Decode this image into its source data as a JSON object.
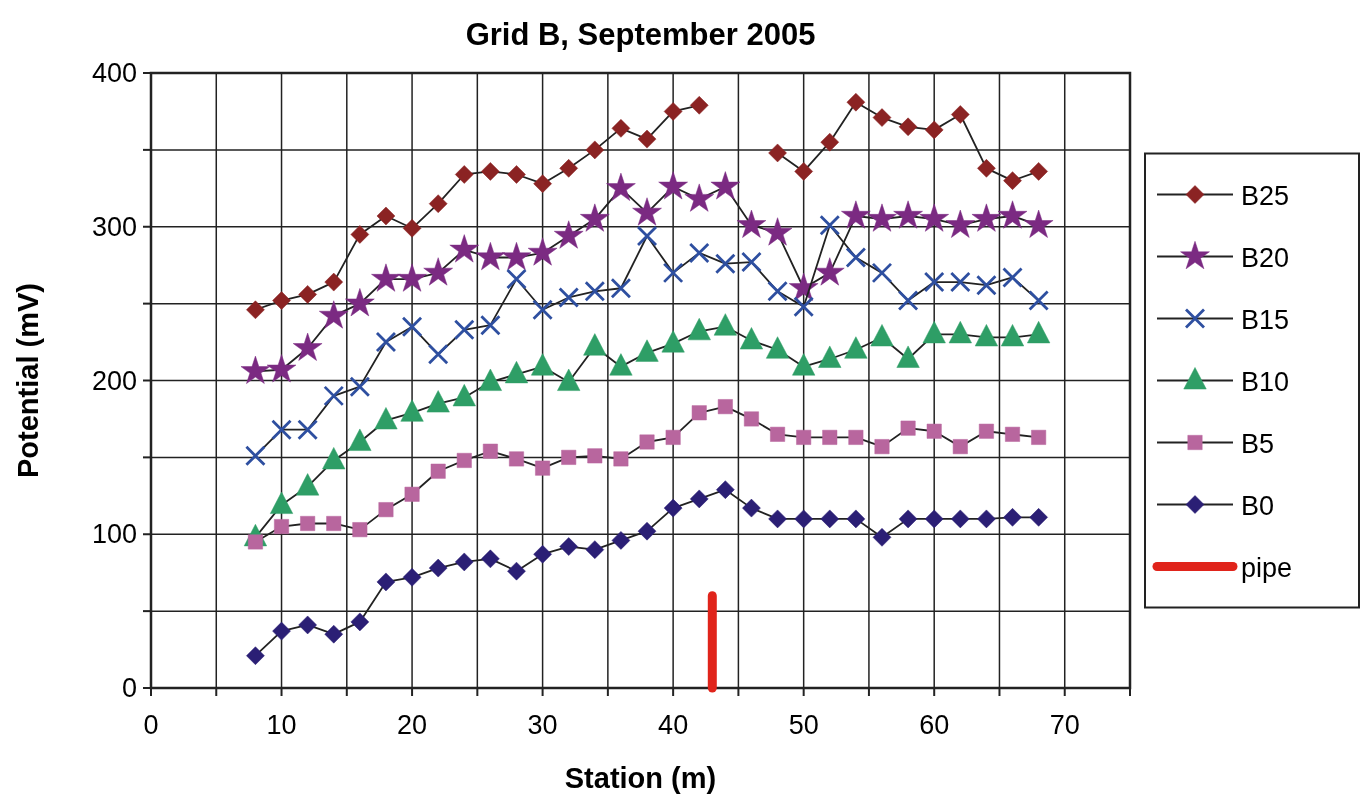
{
  "chart_data": {
    "type": "line",
    "title": "Grid B, September 2005",
    "xlabel": "Station (m)",
    "ylabel": "Potential (mV)",
    "x": [
      8,
      10,
      12,
      14,
      16,
      18,
      20,
      22,
      24,
      26,
      28,
      30,
      32,
      34,
      36,
      38,
      40,
      42,
      44,
      46,
      48,
      50,
      52,
      54,
      56,
      58,
      60,
      62,
      64,
      66,
      68
    ],
    "xlim": [
      0,
      75
    ],
    "xticks": [
      0,
      {
        "value": 5,
        "label": null
      },
      10,
      {
        "value": 15,
        "label": null
      },
      20,
      {
        "value": 25,
        "label": null
      },
      30,
      {
        "value": 35,
        "label": null
      },
      40,
      {
        "value": 45,
        "label": null
      },
      50,
      {
        "value": 55,
        "label": null
      },
      60,
      {
        "value": 65,
        "label": null
      },
      70,
      {
        "value": 75,
        "label": null
      }
    ],
    "ylim": [
      0,
      400
    ],
    "yticks": [
      0,
      {
        "value": 50,
        "label": null
      },
      100,
      {
        "value": 150,
        "label": null
      },
      200,
      {
        "value": 250,
        "label": null
      },
      300,
      {
        "value": 350,
        "label": null
      },
      400
    ],
    "grid": true,
    "legend": "right",
    "line_style": "solid",
    "series": [
      {
        "name": "B25",
        "color": "#8b2323",
        "marker": "diamond",
        "values": [
          246,
          252,
          256,
          264,
          295,
          307,
          299,
          315,
          334,
          336,
          334,
          328,
          338,
          350,
          364,
          357,
          375,
          379,
          null,
          null,
          348,
          336,
          355,
          381,
          371,
          365,
          363,
          373,
          338,
          330,
          336
        ]
      },
      {
        "name": "B20",
        "color": "#7b2a82",
        "marker": "star",
        "values": [
          206,
          207,
          221,
          242,
          250,
          266,
          266,
          270,
          285,
          280,
          280,
          283,
          294,
          305,
          325,
          309,
          326,
          318,
          326,
          301,
          296,
          260,
          270,
          307,
          305,
          307,
          305,
          301,
          305,
          307,
          301
        ]
      },
      {
        "name": "B15",
        "color": "#2e4fa0",
        "marker": "cross",
        "values": [
          151,
          168,
          168,
          190,
          196,
          225,
          235,
          217,
          233,
          236,
          266,
          246,
          254,
          258,
          260,
          294,
          270,
          283,
          276,
          277,
          258,
          248,
          301,
          280,
          270,
          252,
          264,
          264,
          262,
          267,
          252
        ]
      },
      {
        "name": "B10",
        "color": "#2e9e66",
        "marker": "triangle",
        "values": [
          98,
          119,
          131,
          148,
          160,
          174,
          179,
          185,
          189,
          199,
          204,
          209,
          199,
          222,
          209,
          218,
          224,
          232,
          235,
          226,
          220,
          209,
          214,
          220,
          228,
          214,
          230,
          230,
          228,
          228,
          230
        ]
      },
      {
        "name": "B5",
        "color": "#b8669e",
        "marker": "square",
        "values": [
          95,
          105,
          107,
          107,
          103,
          116,
          126,
          141,
          148,
          154,
          149,
          143,
          150,
          151,
          149,
          160,
          163,
          179,
          183,
          175,
          165,
          163,
          163,
          163,
          157,
          169,
          167,
          157,
          167,
          165,
          163
        ]
      },
      {
        "name": "B0",
        "color": "#2b1f75",
        "marker": "diamond",
        "values": [
          21,
          37,
          41,
          35,
          43,
          69,
          72,
          78,
          82,
          84,
          76,
          87,
          92,
          90,
          96,
          102,
          117,
          123,
          129,
          117,
          110,
          110,
          110,
          110,
          98,
          110,
          110,
          110,
          110,
          111,
          111
        ]
      },
      {
        "name": "pipe",
        "color": "#e0241b",
        "marker": "none",
        "x": [
          43,
          43
        ],
        "values": [
          0,
          60
        ]
      }
    ]
  }
}
